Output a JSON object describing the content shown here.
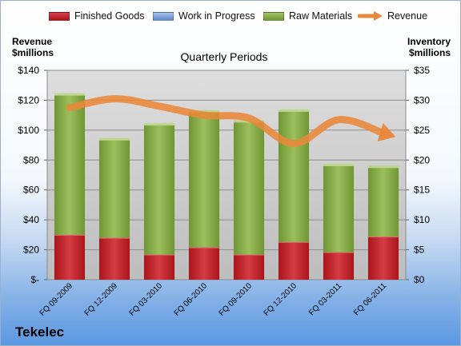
{
  "chart_data": {
    "type": "bar",
    "title": "Quarterly Periods",
    "company": "Tekelec",
    "categories": [
      "FQ 09-2009",
      "FQ 12-2009",
      "FQ 03-2010",
      "FQ 06-2010",
      "FQ 09-2010",
      "FQ 12-2010",
      "FQ 03-2011",
      "FQ 06-2011"
    ],
    "stacked": true,
    "left_axis": {
      "label_line1": "Revenue",
      "label_line2": "$millions",
      "range": [
        0,
        140
      ],
      "ticks": [
        "$-",
        "$20",
        "$40",
        "$60",
        "$80",
        "$100",
        "$120",
        "$140"
      ]
    },
    "right_axis": {
      "label_line1": "Inventory",
      "label_line2": "$millions",
      "range": [
        0,
        35
      ],
      "ticks": [
        "$0",
        "$5",
        "$10",
        "$15",
        "$20",
        "$25",
        "$30",
        "$35"
      ]
    },
    "series": [
      {
        "name": "Finished Goods",
        "axis": "right",
        "color": "#c0272d",
        "values": [
          7.5,
          7.0,
          4.2,
          5.4,
          4.2,
          6.3,
          4.6,
          7.2
        ]
      },
      {
        "name": "Work in Progress",
        "axis": "right",
        "color": "#7ea6dc",
        "values": [
          0,
          0,
          0,
          0,
          0,
          0,
          0,
          0
        ]
      },
      {
        "name": "Raw Materials",
        "axis": "right",
        "color": "#8cb04e",
        "values": [
          23.4,
          16.4,
          21.7,
          22.7,
          22.2,
          21.9,
          14.5,
          11.6
        ]
      },
      {
        "name": "Revenue",
        "axis": "left",
        "type": "line",
        "color": "#e9873a",
        "values": [
          115,
          121,
          116,
          110,
          108,
          91,
          107,
          98
        ]
      }
    ],
    "grid": true,
    "legend_position": "top"
  }
}
